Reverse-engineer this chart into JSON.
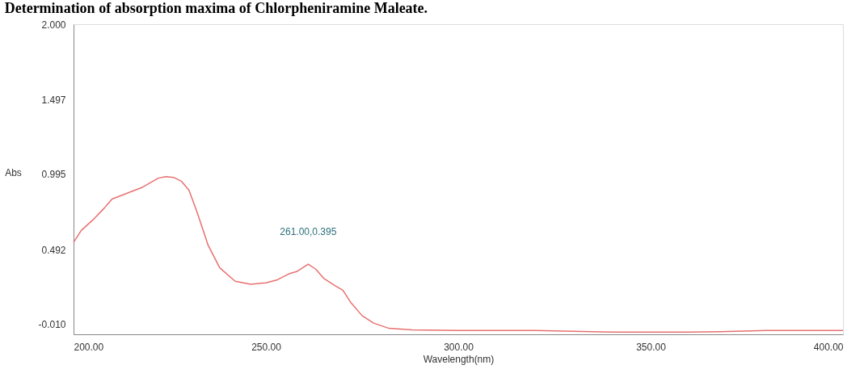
{
  "chart_data": {
    "type": "line",
    "title": "Determination of absorption maxima of Chlorpheniramine Maleate.",
    "xlabel": "Wavelength(nm)",
    "ylabel": "Abs",
    "x": [
      200,
      202,
      205,
      208,
      210,
      213,
      215,
      218,
      220,
      222,
      224,
      226,
      228,
      230,
      232,
      235,
      238,
      242,
      246,
      250,
      253,
      256,
      258,
      261,
      263,
      265,
      268,
      270,
      272,
      275,
      278,
      282,
      288,
      300,
      320,
      330,
      340,
      350,
      360,
      368,
      380,
      400
    ],
    "series": [
      {
        "color": "#e87070",
        "values": [
          0.54,
          0.62,
          0.69,
          0.77,
          0.83,
          0.86,
          0.88,
          0.91,
          0.94,
          0.97,
          0.98,
          0.975,
          0.95,
          0.89,
          0.75,
          0.52,
          0.37,
          0.28,
          0.26,
          0.27,
          0.29,
          0.33,
          0.345,
          0.395,
          0.36,
          0.3,
          0.25,
          0.22,
          0.14,
          0.05,
          0.0,
          -0.035,
          -0.045,
          -0.05,
          -0.05,
          -0.055,
          -0.06,
          -0.06,
          -0.06,
          -0.058,
          -0.05,
          -0.05
        ]
      }
    ],
    "xlim": [
      200,
      400
    ],
    "ylim": [
      -0.075,
      2.0
    ],
    "xticks": [
      {
        "value": 200,
        "label": "200.00"
      },
      {
        "value": 250,
        "label": "250.00"
      },
      {
        "value": 300,
        "label": "300.00"
      },
      {
        "value": 350,
        "label": "350.00"
      },
      {
        "value": 400,
        "label": "400.00"
      }
    ],
    "yticks": [
      {
        "value": -0.01,
        "label": "-0.010"
      },
      {
        "value": 0.492,
        "label": "0.492"
      },
      {
        "value": 0.995,
        "label": "0.995"
      },
      {
        "value": 1.497,
        "label": "1.497"
      },
      {
        "value": 2.0,
        "label": "2.000"
      }
    ],
    "annotations": [
      {
        "text": "261.00,0.395",
        "x": 261,
        "y": 0.395
      }
    ],
    "grid": false,
    "marker": "none",
    "line_style": "solid"
  }
}
